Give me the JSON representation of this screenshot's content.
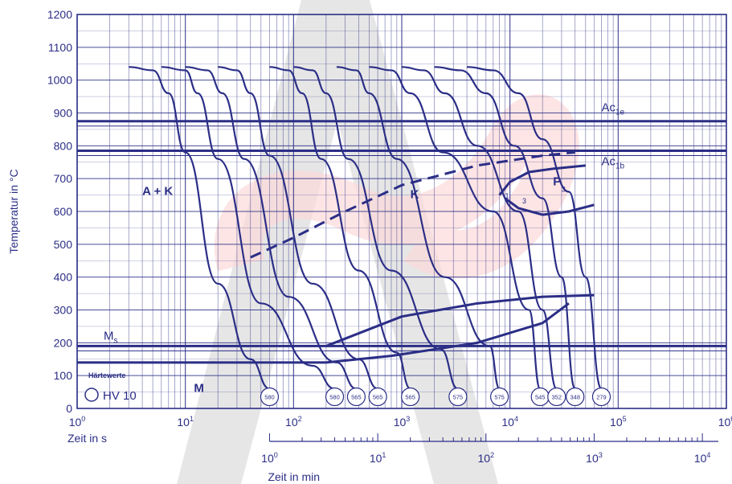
{
  "chart_data": {
    "type": "line",
    "xlabel": "Zeit in s",
    "x2label": "Zeit in min",
    "ylabel": "Temperatur in °C",
    "x_scale": "log",
    "xlim": [
      1,
      100000
    ],
    "ylim": [
      0,
      1200
    ],
    "y_ticks": [
      "0",
      "100",
      "200",
      "300",
      "400",
      "500",
      "600",
      "700",
      "800",
      "900",
      "1000",
      "1100",
      "1200"
    ],
    "x_ticks": [
      {
        "base": "10",
        "exp": "0",
        "value": 1
      },
      {
        "base": "10",
        "exp": "1",
        "value": 10
      },
      {
        "base": "10",
        "exp": "2",
        "value": 100
      },
      {
        "base": "10",
        "exp": "3",
        "value": 1000
      },
      {
        "base": "10",
        "exp": "4",
        "value": 10000
      },
      {
        "base": "10",
        "exp": "5",
        "value": 100000
      },
      {
        "base": "10",
        "exp": "6",
        "value": 1000000
      }
    ],
    "x2_ticks": [
      {
        "base": "10",
        "exp": "0",
        "value_s": 60
      },
      {
        "base": "10",
        "exp": "1",
        "value_s": 600
      },
      {
        "base": "10",
        "exp": "2",
        "value_s": 6000
      },
      {
        "base": "10",
        "exp": "3",
        "value_s": 60000
      },
      {
        "base": "10",
        "exp": "4",
        "value_s": 600000
      }
    ],
    "grid": true,
    "reference_lines": [
      {
        "label": "Ac",
        "sub": "1e",
        "y": 875
      },
      {
        "label": "Ac",
        "sub": "1b",
        "y": 785
      },
      {
        "label": "M",
        "sub": "s",
        "y": 190
      }
    ],
    "ms_lower_y": 140,
    "cooling_curves": [
      {
        "x": [
          3,
          5,
          7,
          10,
          20,
          40,
          60
        ],
        "y": [
          1040,
          1030,
          960,
          780,
          380,
          150,
          60
        ],
        "label": "580"
      },
      {
        "x": [
          6,
          10,
          13,
          20,
          50,
          150,
          240
        ],
        "y": [
          1040,
          1030,
          960,
          760,
          320,
          130,
          60
        ],
        "label": "580"
      },
      {
        "x": [
          10,
          16,
          22,
          35,
          90,
          250,
          380
        ],
        "y": [
          1040,
          1030,
          960,
          760,
          340,
          140,
          60
        ],
        "label": "565"
      },
      {
        "x": [
          20,
          30,
          40,
          60,
          150,
          400,
          600
        ],
        "y": [
          1040,
          1030,
          960,
          770,
          380,
          150,
          60
        ],
        "label": "565"
      },
      {
        "x": [
          60,
          90,
          120,
          180,
          400,
          900,
          1200
        ],
        "y": [
          1040,
          1030,
          960,
          760,
          420,
          170,
          60
        ],
        "label": "565"
      },
      {
        "x": [
          100,
          150,
          200,
          320,
          800,
          2300,
          3300
        ],
        "y": [
          1040,
          1030,
          960,
          760,
          420,
          180,
          60
        ],
        "label": "575"
      },
      {
        "x": [
          250,
          380,
          500,
          900,
          2500,
          6500,
          8000
        ],
        "y": [
          1040,
          1030,
          960,
          760,
          400,
          190,
          60
        ],
        "label": "575"
      },
      {
        "x": [
          500,
          800,
          1200,
          2400,
          7000,
          15000,
          19000
        ],
        "y": [
          1040,
          1030,
          960,
          780,
          600,
          300,
          60
        ],
        "label": "545"
      },
      {
        "x": [
          1000,
          1600,
          2500,
          5000,
          12000,
          20000,
          27000
        ],
        "y": [
          1040,
          1030,
          960,
          800,
          600,
          300,
          60
        ],
        "label": "352"
      },
      {
        "x": [
          2000,
          3500,
          6000,
          11000,
          20000,
          30000,
          40000
        ],
        "y": [
          1040,
          1030,
          960,
          800,
          640,
          400,
          60
        ],
        "label": "348"
      },
      {
        "x": [
          4000,
          7000,
          12000,
          20000,
          35000,
          50000,
          70000
        ],
        "y": [
          1040,
          1030,
          960,
          820,
          660,
          400,
          60
        ],
        "label": "279"
      }
    ],
    "transformation_lines": [
      {
        "name": "carbide_start",
        "style": "dashed",
        "x": [
          40,
          100,
          300,
          1000,
          5000,
          20000,
          40000
        ],
        "y": [
          460,
          520,
          600,
          680,
          740,
          770,
          780
        ]
      },
      {
        "name": "pearlite_start",
        "style": "solid",
        "x": [
          8000,
          10000,
          15000,
          25000,
          50000
        ],
        "y": [
          650,
          690,
          720,
          730,
          740
        ]
      },
      {
        "name": "pearlite_end",
        "style": "solid",
        "x": [
          9000,
          12000,
          20000,
          35000,
          60000
        ],
        "y": [
          640,
          610,
          590,
          600,
          620
        ]
      },
      {
        "name": "bainite_upper",
        "style": "solid",
        "x": [
          200,
          1000,
          5000,
          20000,
          60000
        ],
        "y": [
          190,
          280,
          320,
          340,
          345
        ]
      },
      {
        "name": "bainite_lower",
        "style": "solid",
        "x": [
          200,
          800,
          5000,
          20000,
          35000
        ],
        "y": [
          140,
          160,
          200,
          260,
          320
        ]
      }
    ],
    "pearlite_fraction_labels": [
      "1",
      "3",
      "3"
    ],
    "region_labels": [
      {
        "text": "A + K",
        "x": 4,
        "y": 650
      },
      {
        "text": "K",
        "x": 1200,
        "y": 640
      },
      {
        "text": "P",
        "x": 25000,
        "y": 680
      },
      {
        "text": "M",
        "x": 12,
        "y": 50
      }
    ],
    "legend_title": "Härtewerte",
    "legend_label": "HV 10"
  }
}
